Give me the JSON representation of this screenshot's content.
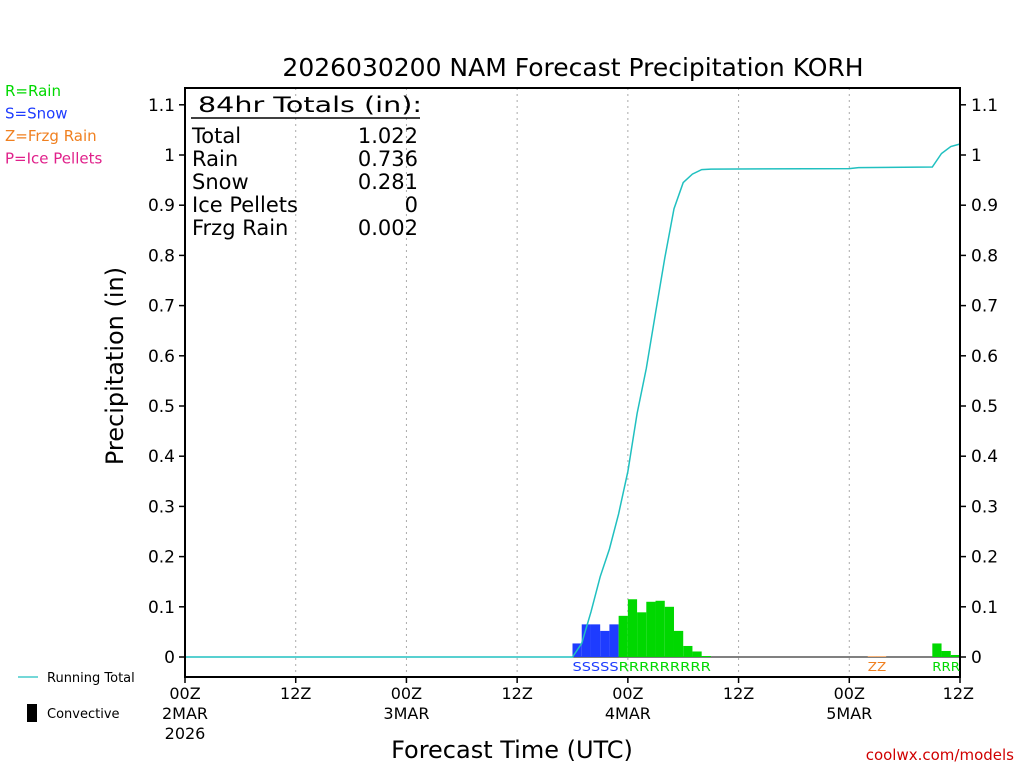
{
  "chart_data": {
    "type": "bar",
    "title": "2026030200 NAM Forecast Precipitation KORH",
    "xlabel": "Forecast Time (UTC)",
    "ylabel": "Precipitation (in)",
    "ylim": [
      0,
      1.1
    ],
    "xlim_hours": [
      0,
      84
    ],
    "y_ticks": [
      "0",
      "0.1",
      "0.2",
      "0.3",
      "0.4",
      "0.5",
      "0.6",
      "0.7",
      "0.8",
      "0.9",
      "1",
      "1.1"
    ],
    "x_ticks": [
      {
        "hour": 0,
        "line1": "00Z",
        "line2": "2MAR",
        "line3": "2026"
      },
      {
        "hour": 12,
        "line1": "12Z",
        "line2": "",
        "line3": ""
      },
      {
        "hour": 24,
        "line1": "00Z",
        "line2": "3MAR",
        "line3": ""
      },
      {
        "hour": 36,
        "line1": "12Z",
        "line2": "",
        "line3": ""
      },
      {
        "hour": 48,
        "line1": "00Z",
        "line2": "4MAR",
        "line3": ""
      },
      {
        "hour": 60,
        "line1": "12Z",
        "line2": "",
        "line3": ""
      },
      {
        "hour": 72,
        "line1": "00Z",
        "line2": "5MAR",
        "line3": ""
      },
      {
        "hour": 84,
        "line1": "12Z",
        "line2": "",
        "line3": ""
      }
    ],
    "bars": [
      {
        "hour": 43,
        "value": 0.027,
        "type": "snow"
      },
      {
        "hour": 44,
        "value": 0.065,
        "type": "snow"
      },
      {
        "hour": 45,
        "value": 0.065,
        "type": "snow"
      },
      {
        "hour": 46,
        "value": 0.052,
        "type": "snow"
      },
      {
        "hour": 47,
        "value": 0.065,
        "type": "snow"
      },
      {
        "hour": 48,
        "value": 0.082,
        "type": "rain"
      },
      {
        "hour": 49,
        "value": 0.115,
        "type": "rain"
      },
      {
        "hour": 50,
        "value": 0.089,
        "type": "rain"
      },
      {
        "hour": 51,
        "value": 0.11,
        "type": "rain"
      },
      {
        "hour": 52,
        "value": 0.112,
        "type": "rain"
      },
      {
        "hour": 53,
        "value": 0.1,
        "type": "rain"
      },
      {
        "hour": 54,
        "value": 0.052,
        "type": "rain"
      },
      {
        "hour": 55,
        "value": 0.022,
        "type": "rain"
      },
      {
        "hour": 56,
        "value": 0.011,
        "type": "rain"
      },
      {
        "hour": 57,
        "value": 0.002,
        "type": "rain"
      },
      {
        "hour": 75,
        "value": 0.001,
        "type": "frzg_rain"
      },
      {
        "hour": 76,
        "value": 0.001,
        "type": "frzg_rain"
      },
      {
        "hour": 82,
        "value": 0.027,
        "type": "rain"
      },
      {
        "hour": 83,
        "value": 0.012,
        "type": "rain"
      },
      {
        "hour": 84,
        "value": 0.004,
        "type": "rain"
      }
    ],
    "running_total": [
      {
        "hour": 0,
        "value": 0
      },
      {
        "hour": 42,
        "value": 0
      },
      {
        "hour": 43,
        "value": 0.027
      },
      {
        "hour": 44,
        "value": 0.09
      },
      {
        "hour": 45,
        "value": 0.16
      },
      {
        "hour": 46,
        "value": 0.215
      },
      {
        "hour": 47,
        "value": 0.285
      },
      {
        "hour": 48,
        "value": 0.37
      },
      {
        "hour": 49,
        "value": 0.485
      },
      {
        "hour": 50,
        "value": 0.575
      },
      {
        "hour": 51,
        "value": 0.685
      },
      {
        "hour": 52,
        "value": 0.795
      },
      {
        "hour": 53,
        "value": 0.893
      },
      {
        "hour": 54,
        "value": 0.945
      },
      {
        "hour": 55,
        "value": 0.962
      },
      {
        "hour": 56,
        "value": 0.971
      },
      {
        "hour": 57,
        "value": 0.972
      },
      {
        "hour": 72,
        "value": 0.973
      },
      {
        "hour": 73,
        "value": 0.975
      },
      {
        "hour": 81,
        "value": 0.976
      },
      {
        "hour": 82,
        "value": 1.003
      },
      {
        "hour": 83,
        "value": 1.017
      },
      {
        "hour": 84,
        "value": 1.022
      }
    ],
    "type_markers": [
      {
        "text": "SSSSS",
        "start_hour": 43,
        "end_hour": 47,
        "type": "snow"
      },
      {
        "text": "RRRRRRRRR",
        "start_hour": 48,
        "end_hour": 57,
        "type": "rain"
      },
      {
        "text": "ZZ",
        "start_hour": 75,
        "end_hour": 76,
        "type": "frzg_rain"
      },
      {
        "text": "RRR",
        "start_hour": 82,
        "end_hour": 84,
        "type": "rain"
      }
    ],
    "totals_box": {
      "header": "84hr Totals (in):",
      "rows": [
        {
          "label": "Total",
          "value": "1.022"
        },
        {
          "label": "Rain",
          "value": "0.736"
        },
        {
          "label": "Snow",
          "value": "0.281"
        },
        {
          "label": "Ice Pellets",
          "value": "0"
        },
        {
          "label": "Frzg Rain",
          "value": "0.002"
        }
      ]
    },
    "type_legend": [
      {
        "text": "R=Rain",
        "type": "rain"
      },
      {
        "text": "S=Snow",
        "type": "snow"
      },
      {
        "text": "Z=Frzg Rain",
        "type": "frzg_rain"
      },
      {
        "text": "P=Ice Pellets",
        "type": "ice_pellets"
      }
    ],
    "series_legend": {
      "running_total": "Running Total",
      "convective": "Convective"
    },
    "credit": "coolwx.com/models",
    "colors": {
      "rain": "#00d800",
      "snow": "#1e3cff",
      "frzg_rain": "#f08020",
      "ice_pellets": "#e0208a",
      "running_total": "#20c0c0",
      "convective": "#000000",
      "credit": "#d00000",
      "grid": "#aaaaaa"
    }
  }
}
